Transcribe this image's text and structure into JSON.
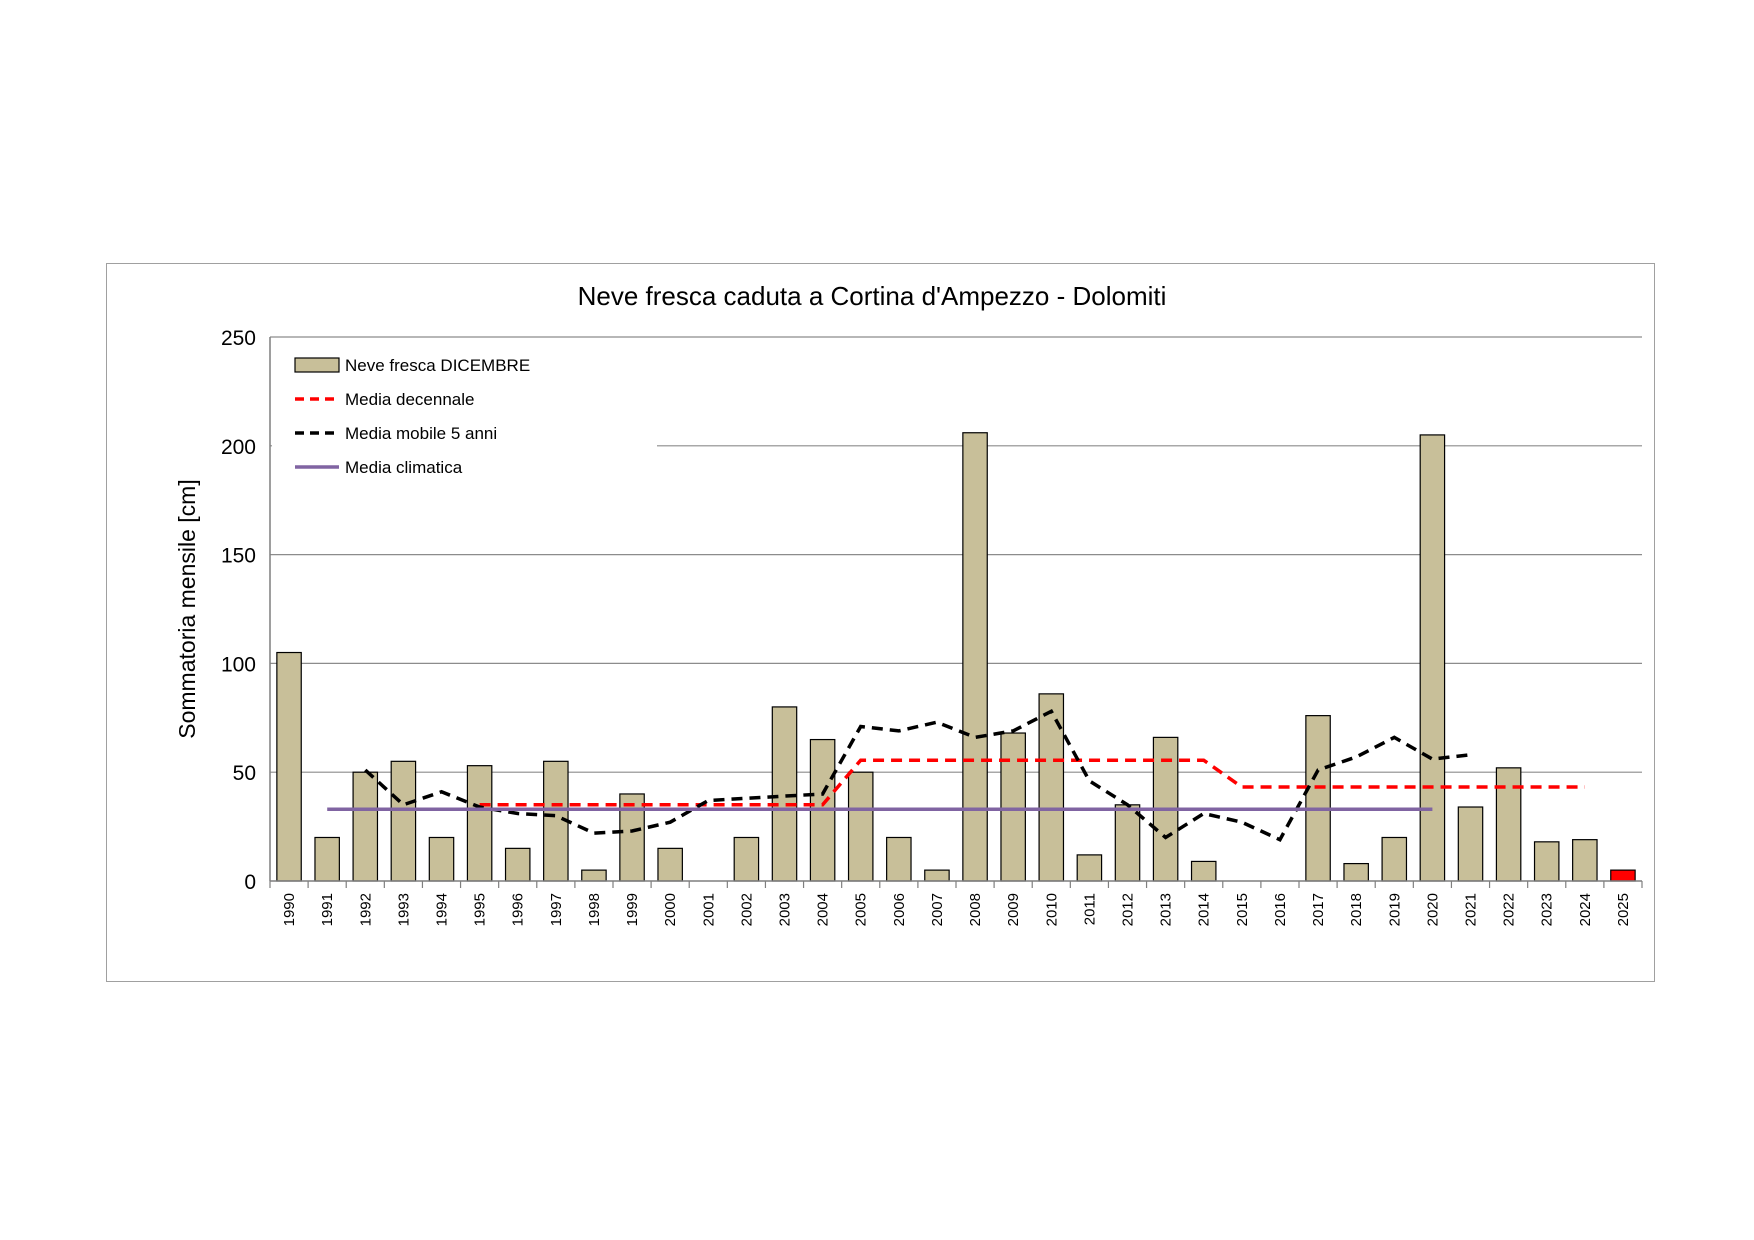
{
  "chart_data": {
    "type": "bar",
    "title": "Neve fresca caduta a Cortina d'Ampezzo  - Dolomiti",
    "ylabel": "Sommatoria mensile  [cm]",
    "xlabel": "",
    "ylim": [
      0,
      250
    ],
    "yticks": [
      0,
      50,
      100,
      150,
      200,
      250
    ],
    "grid": true,
    "legend_position": "top-left",
    "categories": [
      "1990",
      "1991",
      "1992",
      "1993",
      "1994",
      "1995",
      "1996",
      "1997",
      "1998",
      "1999",
      "2000",
      "2001",
      "2002",
      "2003",
      "2004",
      "2005",
      "2006",
      "2007",
      "2008",
      "2009",
      "2010",
      "2011",
      "2012",
      "2013",
      "2014",
      "2015",
      "2016",
      "2017",
      "2018",
      "2019",
      "2020",
      "2021",
      "2022",
      "2023",
      "2024",
      "2025"
    ],
    "series": [
      {
        "name": "Neve fresca DICEMBRE",
        "kind": "bar",
        "color": "#c8bf99",
        "highlight": {
          "index": 35,
          "color": "#ff0000"
        },
        "values": [
          105,
          20,
          50,
          55,
          20,
          53,
          15,
          55,
          5,
          40,
          15,
          0,
          20,
          80,
          65,
          50,
          20,
          5,
          206,
          68,
          86,
          12,
          35,
          66,
          9,
          0,
          0,
          76,
          8,
          20,
          205,
          34,
          52,
          18,
          19,
          5
        ]
      },
      {
        "name": "Media decennale",
        "kind": "line",
        "style": "dashed",
        "color": "#ff0000",
        "values": [
          null,
          null,
          null,
          null,
          null,
          35,
          35,
          35,
          35,
          35,
          35,
          35,
          35,
          35,
          35,
          55.5,
          55.5,
          55.5,
          55.5,
          55.5,
          55.5,
          55.5,
          55.5,
          55.5,
          55.5,
          43.2,
          43.2,
          43.2,
          43.2,
          43.2,
          43.2,
          43.2,
          43.2,
          43.2,
          43.2,
          null
        ]
      },
      {
        "name": "Media mobile 5 anni",
        "kind": "line",
        "style": "dashed",
        "color": "#000000",
        "values": [
          null,
          null,
          51,
          35,
          41,
          34,
          31,
          30,
          22,
          23,
          27,
          37,
          38,
          39,
          40,
          71,
          69,
          73,
          66,
          69,
          78,
          46,
          35,
          20,
          31,
          27,
          19,
          51,
          57,
          66,
          56,
          58,
          null,
          null,
          null,
          null
        ]
      },
      {
        "name": "Media climatica",
        "kind": "line",
        "style": "solid",
        "color": "#8064a2",
        "values": [
          null,
          33,
          33,
          33,
          33,
          33,
          33,
          33,
          33,
          33,
          33,
          33,
          33,
          33,
          33,
          33,
          33,
          33,
          33,
          33,
          33,
          33,
          33,
          33,
          33,
          33,
          33,
          33,
          33,
          33,
          33,
          null,
          null,
          null,
          null,
          null
        ]
      }
    ]
  }
}
